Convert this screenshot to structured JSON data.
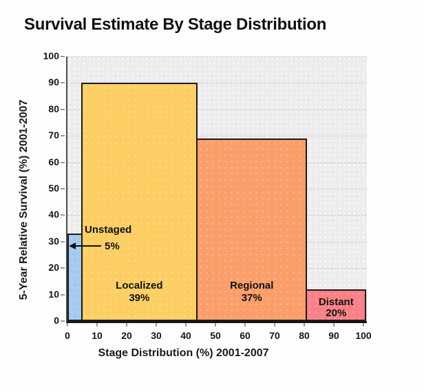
{
  "chart_data": {
    "type": "bar",
    "variant": "variable-width",
    "title": "Survival Estimate By Stage Distribution",
    "xlabel": "Stage Distribution (%) 2001-2007",
    "ylabel": "5-Year Relative Survival (%) 2001-2007",
    "xlim": [
      0,
      101
    ],
    "ylim": [
      0,
      100
    ],
    "x_ticks": [
      0,
      10,
      20,
      30,
      40,
      50,
      60,
      70,
      80,
      90,
      100
    ],
    "y_ticks": [
      0,
      10,
      20,
      30,
      40,
      50,
      60,
      70,
      80,
      90,
      100
    ],
    "grid": "horizontal-dashed",
    "legend": "none",
    "bars": [
      {
        "stage": "Unstaged",
        "distribution_pct": 5,
        "survival_pct": 33,
        "color": "#A6CAEF",
        "label": "Unstaged",
        "value_label": "5%",
        "label_placement": "outside-arrow"
      },
      {
        "stage": "Localized",
        "distribution_pct": 39,
        "survival_pct": 90,
        "color": "#FDCE63",
        "label": "Localized",
        "value_label": "39%",
        "label_placement": "inside-bottom"
      },
      {
        "stage": "Regional",
        "distribution_pct": 37,
        "survival_pct": 69,
        "color": "#FA9E6A",
        "label": "Regional",
        "value_label": "37%",
        "label_placement": "inside-bottom"
      },
      {
        "stage": "Distant",
        "distribution_pct": 20,
        "survival_pct": 12,
        "color": "#FA8186",
        "label": "Distant",
        "value_label": "20%",
        "label_placement": "inside-small"
      }
    ],
    "colors": {
      "plot_background": "#ECECEC",
      "gridline": "#C8C8C8",
      "bar_border": "#1A1A1A",
      "axis_y": "#4A4A4A",
      "axis_x": "#151515",
      "text": "#111111"
    }
  }
}
